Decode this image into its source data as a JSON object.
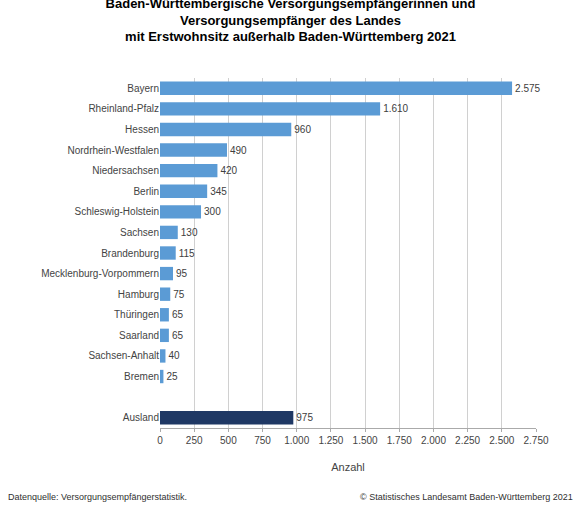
{
  "chart_data": {
    "type": "bar",
    "orientation": "horizontal",
    "title": "Baden-Württembergische Versorgungsempfängerinnen und\nVersorgungsempfänger des Landes\nmit Erstwohnsitz außerhalb Baden-Württemberg 2021",
    "xlabel": "Anzahl",
    "categories": [
      "Bayern",
      "Rheinland-Pfalz",
      "Hessen",
      "Nordrhein-Westfalen",
      "Niedersachsen",
      "Berlin",
      "Schleswig-Holstein",
      "Sachsen",
      "Brandenburg",
      "Mecklenburg-Vorpommern",
      "Hamburg",
      "Thüringen",
      "Saarland",
      "Sachsen-Anhalt",
      "Bremen",
      null,
      "Ausland"
    ],
    "values": [
      2575,
      1610,
      960,
      490,
      420,
      345,
      300,
      130,
      115,
      95,
      75,
      65,
      65,
      40,
      25,
      null,
      975
    ],
    "value_labels": [
      "2.575",
      "1.610",
      "960",
      "490",
      "420",
      "345",
      "300",
      "130",
      "115",
      "95",
      "75",
      "65",
      "65",
      "40",
      "25",
      null,
      "975"
    ],
    "data_labels": true,
    "colors": [
      "#5b9bd5",
      "#5b9bd5",
      "#5b9bd5",
      "#5b9bd5",
      "#5b9bd5",
      "#5b9bd5",
      "#5b9bd5",
      "#5b9bd5",
      "#5b9bd5",
      "#5b9bd5",
      "#5b9bd5",
      "#5b9bd5",
      "#5b9bd5",
      "#5b9bd5",
      "#5b9bd5",
      null,
      "#1f3864"
    ],
    "xlim": [
      0,
      2750
    ],
    "xticks": [
      0,
      250,
      500,
      750,
      {
        "value": 1000,
        "label": "1.000"
      },
      {
        "value": 1250,
        "label": "1.250"
      },
      {
        "value": 1500,
        "label": "1.500"
      },
      {
        "value": 1750,
        "label": "1.750"
      },
      {
        "value": 2000,
        "label": "2.000"
      },
      {
        "value": 2250,
        "label": "2.250"
      },
      {
        "value": 2500,
        "label": "2.500"
      },
      {
        "value": 2750,
        "label": "2.750"
      }
    ],
    "grid": true,
    "annotations": [
      "Datenquelle: Versorgungsempfängerstatistik.",
      "© Statistisches Landesamt Baden-Württemberg 2021"
    ]
  }
}
